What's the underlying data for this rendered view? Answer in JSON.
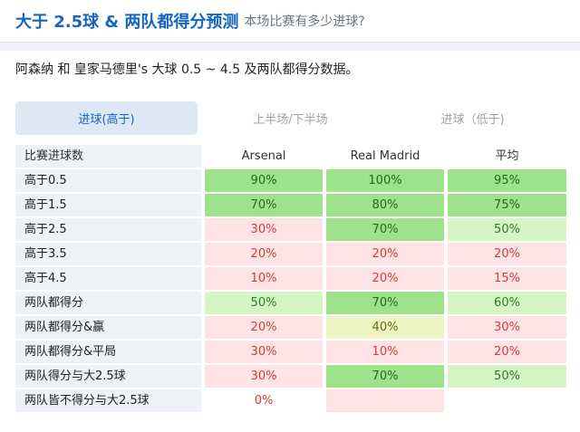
{
  "header": {
    "title": "大于 2.5球 & 两队都得分预测",
    "subtitle": "本场比赛有多少进球?"
  },
  "description": "阿森纳 和 皇家马德里's 大球 0.5 ~ 4.5 及两队都得分数据。",
  "tabs": [
    {
      "label": "进球(高于)",
      "active": true
    },
    {
      "label": "上半场/下半场",
      "active": false
    },
    {
      "label": "进球（低于)",
      "active": false
    }
  ],
  "table": {
    "columns": [
      "比赛进球数",
      "Arsenal",
      "Real Madrid",
      "平均"
    ],
    "rows": [
      {
        "label": "高于0.5",
        "cells": [
          {
            "v": "90%",
            "lv": "dg"
          },
          {
            "v": "100%",
            "lv": "dg"
          },
          {
            "v": "95%",
            "lv": "dg"
          }
        ]
      },
      {
        "label": "高于1.5",
        "cells": [
          {
            "v": "70%",
            "lv": "dg"
          },
          {
            "v": "80%",
            "lv": "dg"
          },
          {
            "v": "75%",
            "lv": "dg"
          }
        ]
      },
      {
        "label": "高于2.5",
        "cells": [
          {
            "v": "30%",
            "lv": "p"
          },
          {
            "v": "70%",
            "lv": "dg"
          },
          {
            "v": "50%",
            "lv": "lg"
          }
        ]
      },
      {
        "label": "高于3.5",
        "cells": [
          {
            "v": "20%",
            "lv": "p"
          },
          {
            "v": "20%",
            "lv": "p"
          },
          {
            "v": "20%",
            "lv": "p"
          }
        ]
      },
      {
        "label": "高于4.5",
        "cells": [
          {
            "v": "10%",
            "lv": "p"
          },
          {
            "v": "20%",
            "lv": "p"
          },
          {
            "v": "15%",
            "lv": "p"
          }
        ]
      },
      {
        "label": "两队都得分",
        "cells": [
          {
            "v": "50%",
            "lv": "lg"
          },
          {
            "v": "70%",
            "lv": "dg"
          },
          {
            "v": "60%",
            "lv": "lg"
          }
        ]
      },
      {
        "label": "两队都得分&赢",
        "cells": [
          {
            "v": "20%",
            "lv": "p"
          },
          {
            "v": "40%",
            "lv": "y"
          },
          {
            "v": "30%",
            "lv": "p"
          }
        ]
      },
      {
        "label": "两队都得分&平局",
        "cells": [
          {
            "v": "30%",
            "lv": "p"
          },
          {
            "v": "10%",
            "lv": "p"
          },
          {
            "v": "20%",
            "lv": "p"
          }
        ]
      },
      {
        "label": "两队得分与大2.5球",
        "cells": [
          {
            "v": "30%",
            "lv": "p"
          },
          {
            "v": "70%",
            "lv": "dg"
          },
          {
            "v": "50%",
            "lv": "lg"
          }
        ]
      },
      {
        "label": "两队皆不得分与大2.5球",
        "cells": [
          {
            "v": "0%",
            "lv": "w"
          },
          {
            "v": "",
            "lv": "p"
          },
          {
            "v": "",
            "lv": "w"
          }
        ]
      }
    ]
  },
  "colors": {
    "accent": "#1565c0",
    "high": "#9ee38c",
    "medium": "#d6f5c4",
    "mid_yellow": "#eef5c4",
    "low": "#fde3e3"
  }
}
